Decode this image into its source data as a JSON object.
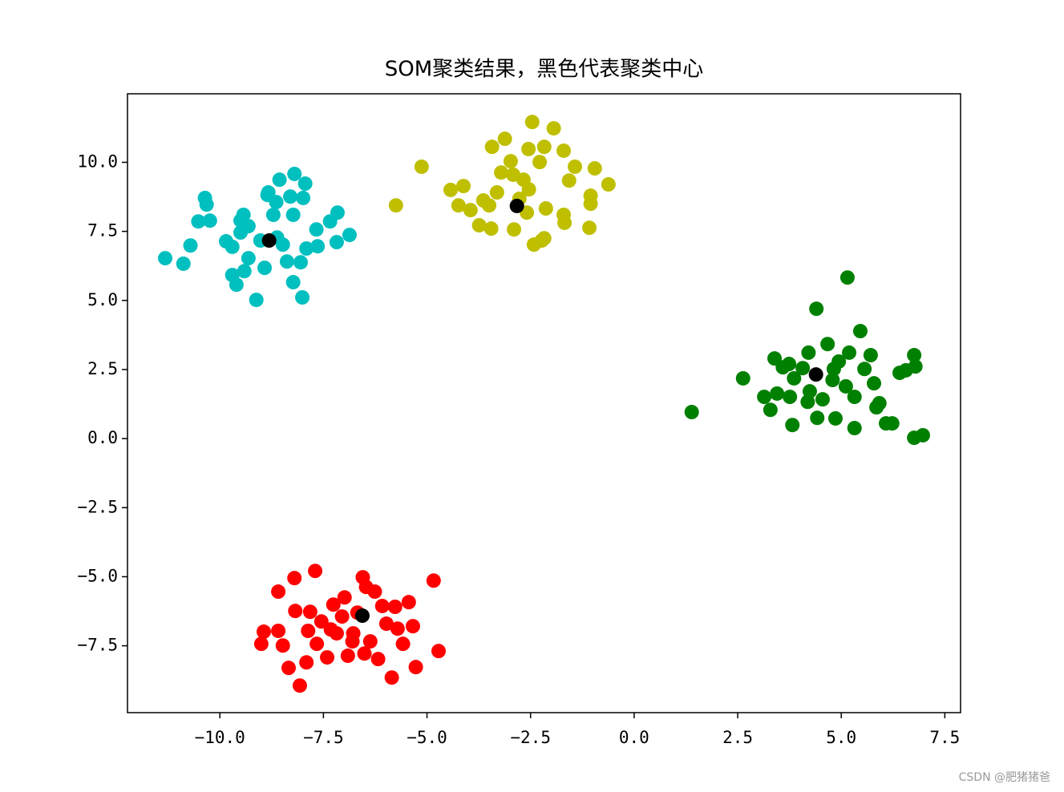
{
  "chart_data": {
    "type": "scatter",
    "title": "SOM聚类结果，黑色代表聚类中心",
    "xlim": [
      -12.23,
      7.88
    ],
    "ylim": [
      -9.92,
      12.48
    ],
    "xticks": [
      {
        "value": -10,
        "label": "−10.0"
      },
      {
        "value": -7.5,
        "label": "−7.5"
      },
      {
        "value": -5,
        "label": "−5.0"
      },
      {
        "value": -2.5,
        "label": "−2.5"
      },
      {
        "value": 0,
        "label": "0.0"
      },
      2.5,
      {
        "value": 5,
        "label": "5.0"
      },
      7.5
    ],
    "yticks": [
      {
        "value": -7.5,
        "label": "−7.5"
      },
      {
        "value": -5,
        "label": "−5.0"
      },
      {
        "value": -2.5,
        "label": "−2.5"
      },
      {
        "value": 0,
        "label": "0.0"
      },
      2.5,
      {
        "value": 5,
        "label": "5.0"
      },
      7.5,
      {
        "value": 10,
        "label": "10.0"
      }
    ],
    "grid": false,
    "series": [
      {
        "color": "#00bfbf",
        "x": [
          -11.32,
          -10.88,
          -10.71,
          -10.52,
          -10.36,
          -10.32,
          -10.24,
          -9.85,
          -9.7,
          -9.6,
          -9.7,
          -9.5,
          -9.43,
          -9.5,
          -9.31,
          -9.12,
          -9.31,
          -9.41,
          -8.92,
          -8.83,
          -8.85,
          -8.71,
          -8.56,
          -8.62,
          -8.48,
          -8.38,
          -8.3,
          -8.2,
          -8.23,
          -8.05,
          -7.99,
          -7.94,
          -8.01,
          -8.23,
          -7.91,
          -7.64,
          -7.67,
          -7.34,
          -7.16,
          -7.18,
          -6.87,
          -8.64,
          -9.02
        ],
        "y": [
          6.53,
          6.33,
          6.99,
          7.86,
          8.71,
          8.47,
          7.89,
          7.14,
          6.94,
          5.57,
          5.92,
          7.89,
          8.1,
          7.46,
          7.69,
          5.02,
          6.53,
          6.06,
          6.18,
          8.91,
          8.82,
          8.1,
          9.37,
          7.28,
          7.02,
          6.41,
          8.76,
          9.58,
          8.1,
          6.38,
          8.71,
          9.23,
          5.11,
          5.66,
          6.88,
          6.96,
          7.57,
          7.86,
          8.18,
          7.11,
          7.37,
          8.56,
          7.17
        ]
      },
      {
        "color": "#bfbf00",
        "x": [
          -5.75,
          -5.13,
          -4.43,
          -4.24,
          -4.12,
          -3.95,
          -3.74,
          -3.64,
          -3.43,
          -3.45,
          -3.5,
          -3.31,
          -3.12,
          -2.98,
          -2.9,
          -3.21,
          -2.77,
          -2.67,
          -2.59,
          -2.55,
          -2.46,
          -2.42,
          -2.28,
          -2.23,
          -2.17,
          -2.13,
          -2.17,
          -1.94,
          -1.7,
          -1.7,
          -1.68,
          -1.57,
          -1.43,
          -1.08,
          -1.05,
          -1.05,
          -0.95,
          -0.62,
          -2.92,
          -2.54
        ],
        "y": [
          8.44,
          9.84,
          9.0,
          8.44,
          9.14,
          8.27,
          7.72,
          8.62,
          10.56,
          7.6,
          8.44,
          8.91,
          10.85,
          10.04,
          7.57,
          9.63,
          8.68,
          9.37,
          8.18,
          10.48,
          11.46,
          7.02,
          10.01,
          7.17,
          10.56,
          8.33,
          7.25,
          11.23,
          8.1,
          10.42,
          7.81,
          9.34,
          9.84,
          7.63,
          8.79,
          8.5,
          9.78,
          9.2,
          9.55,
          9.02
        ]
      },
      {
        "color": "#008000",
        "x": [
          1.39,
          2.63,
          3.14,
          3.29,
          3.39,
          3.45,
          3.59,
          3.74,
          3.82,
          3.76,
          3.86,
          4.07,
          4.19,
          4.21,
          4.4,
          4.42,
          4.55,
          4.67,
          4.79,
          4.82,
          4.86,
          4.94,
          5.11,
          5.15,
          5.19,
          5.32,
          5.32,
          5.46,
          5.56,
          5.71,
          5.79,
          5.85,
          5.92,
          6.08,
          6.23,
          6.41,
          6.56,
          6.76,
          6.79,
          6.76,
          6.97,
          4.24
        ],
        "y": [
          0.96,
          2.18,
          1.51,
          1.04,
          2.9,
          1.63,
          2.58,
          2.7,
          0.49,
          1.51,
          2.18,
          2.55,
          1.33,
          3.11,
          4.7,
          0.75,
          1.42,
          3.42,
          2.12,
          2.52,
          0.73,
          2.79,
          1.89,
          5.83,
          3.11,
          0.38,
          1.51,
          3.89,
          2.52,
          3.02,
          2.0,
          1.13,
          1.28,
          0.55,
          0.55,
          2.38,
          2.47,
          3.02,
          2.61,
          0.03,
          0.12,
          1.71
        ]
      },
      {
        "color": "#ff0000",
        "x": [
          -9.0,
          -8.94,
          -8.59,
          -8.48,
          -8.59,
          -8.34,
          -8.18,
          -8.2,
          -8.07,
          -7.91,
          -7.87,
          -7.82,
          -7.7,
          -7.66,
          -7.55,
          -7.41,
          -7.32,
          -7.26,
          -7.05,
          -6.99,
          -6.91,
          -6.78,
          -6.68,
          -6.55,
          -6.47,
          -6.51,
          -6.37,
          -6.26,
          -6.18,
          -6.08,
          -5.98,
          -5.85,
          -5.77,
          -5.71,
          -5.58,
          -5.44,
          -5.34,
          -5.27,
          -4.84,
          -4.72,
          -6.8,
          -7.18
        ],
        "y": [
          -7.43,
          -6.99,
          -5.54,
          -7.49,
          -6.96,
          -8.3,
          -6.24,
          -5.05,
          -8.94,
          -8.1,
          -6.96,
          -6.27,
          -4.79,
          -7.43,
          -6.62,
          -7.92,
          -6.91,
          -6.01,
          -6.44,
          -5.75,
          -7.86,
          -7.05,
          -6.3,
          -5.02,
          -5.37,
          -7.78,
          -7.34,
          -5.54,
          -7.98,
          -6.06,
          -6.7,
          -8.65,
          -6.09,
          -6.88,
          -7.43,
          -5.92,
          -6.79,
          -8.27,
          -5.14,
          -7.69,
          -7.34,
          -7.05
        ]
      },
      {
        "color": "#000000",
        "x": [
          -8.81,
          -2.83,
          4.39,
          -6.56
        ],
        "y": [
          7.17,
          8.42,
          2.32,
          -6.41
        ]
      }
    ]
  },
  "watermark": "CSDN @肥猪猪爸"
}
